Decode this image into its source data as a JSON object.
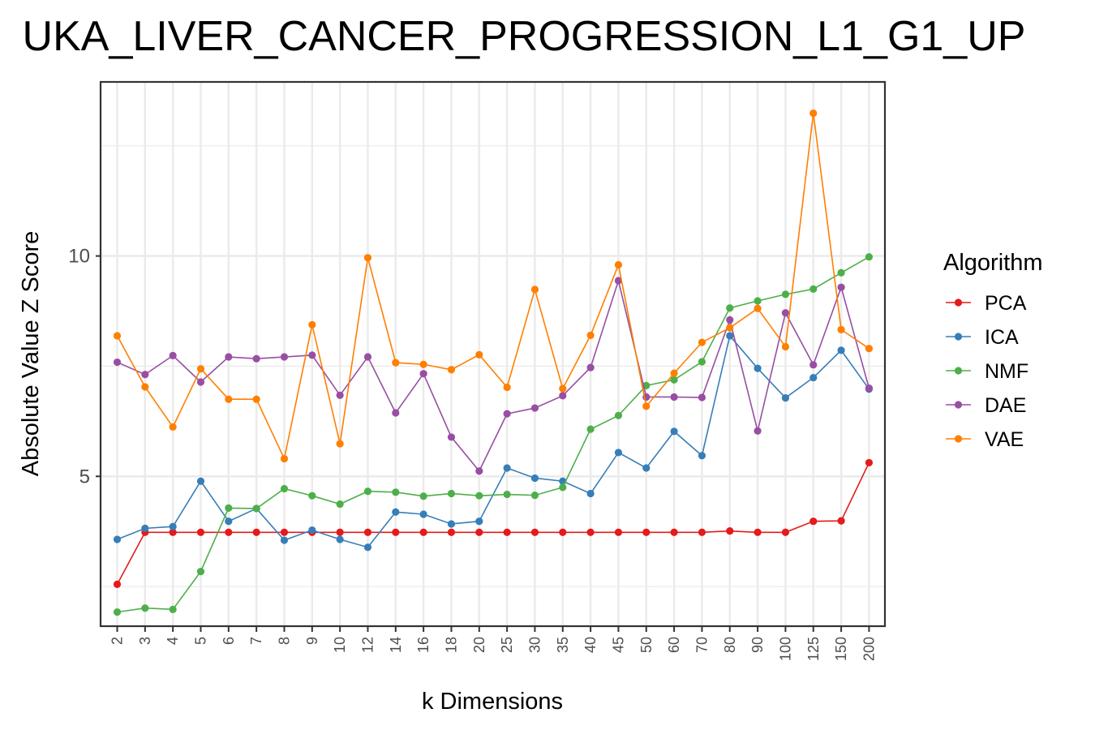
{
  "chart_data": {
    "type": "line",
    "title": "UKA_LIVER_CANCER_PROGRESSION_L1_G1_UP",
    "xlabel": "k Dimensions",
    "ylabel": "Absolute Value Z Score",
    "categories": [
      "2",
      "3",
      "4",
      "5",
      "6",
      "7",
      "8",
      "9",
      "10",
      "12",
      "14",
      "16",
      "18",
      "20",
      "25",
      "30",
      "35",
      "40",
      "45",
      "50",
      "60",
      "70",
      "80",
      "90",
      "100",
      "125",
      "150",
      "200"
    ],
    "ylim": [
      1.6,
      13.95
    ],
    "yticks": [
      5,
      10
    ],
    "ytick_labels": [
      "5",
      "10"
    ],
    "grid": true,
    "legend": {
      "title": "Algorithm",
      "position": "right"
    },
    "series": [
      {
        "name": "PCA",
        "color": "#e41a1c",
        "values": [
          2.55,
          3.73,
          3.73,
          3.73,
          3.73,
          3.73,
          3.73,
          3.73,
          3.73,
          3.73,
          3.73,
          3.73,
          3.73,
          3.73,
          3.73,
          3.73,
          3.73,
          3.73,
          3.73,
          3.73,
          3.73,
          3.73,
          3.76,
          3.73,
          3.73,
          3.98,
          3.99,
          5.31
        ]
      },
      {
        "name": "ICA",
        "color": "#377eb8",
        "values": [
          3.57,
          3.82,
          3.86,
          4.89,
          3.98,
          4.27,
          3.55,
          3.78,
          3.57,
          3.39,
          4.19,
          4.14,
          3.92,
          3.98,
          5.19,
          4.96,
          4.89,
          4.61,
          5.54,
          5.19,
          6.02,
          5.47,
          8.19,
          7.45,
          6.78,
          7.24,
          7.86,
          6.98
        ]
      },
      {
        "name": "NMF",
        "color": "#4daf4a",
        "values": [
          1.92,
          2.01,
          1.98,
          2.84,
          4.28,
          4.27,
          4.72,
          4.56,
          4.37,
          4.66,
          4.64,
          4.55,
          4.61,
          4.56,
          4.59,
          4.57,
          4.75,
          6.07,
          6.38,
          7.06,
          7.19,
          7.6,
          8.82,
          8.98,
          9.13,
          9.25,
          9.62,
          9.98
        ]
      },
      {
        "name": "DAE",
        "color": "#984ea3",
        "values": [
          7.59,
          7.31,
          7.74,
          7.14,
          7.71,
          7.67,
          7.71,
          7.75,
          6.84,
          7.71,
          6.44,
          7.33,
          5.89,
          5.12,
          6.42,
          6.55,
          6.83,
          7.47,
          9.44,
          6.8,
          6.8,
          6.79,
          8.55,
          6.03,
          8.71,
          7.53,
          9.29,
          7.0
        ]
      },
      {
        "name": "VAE",
        "color": "#ff7f00",
        "values": [
          8.19,
          7.03,
          6.12,
          7.44,
          6.75,
          6.75,
          5.4,
          8.44,
          5.74,
          9.96,
          7.58,
          7.54,
          7.42,
          7.76,
          7.02,
          9.24,
          6.99,
          8.2,
          9.8,
          6.59,
          7.34,
          8.04,
          8.37,
          8.81,
          7.94,
          13.24,
          8.33,
          7.9
        ]
      }
    ]
  }
}
